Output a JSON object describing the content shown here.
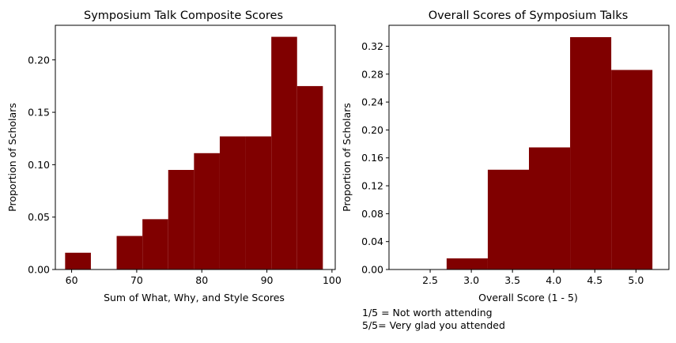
{
  "chart_data": [
    {
      "type": "bar",
      "title": "Symposium Talk Composite Scores",
      "xlabel": "Sum of What, Why, and Style Scores",
      "ylabel": "Proportion of Scholars",
      "xlim": [
        57.5,
        100.5
      ],
      "ylim": [
        0,
        0.233
      ],
      "xticks": [
        60,
        70,
        80,
        90,
        100
      ],
      "xtick_labels": [
        "60",
        "70",
        "80",
        "90",
        "100"
      ],
      "yticks": [
        0,
        0.05,
        0.1,
        0.15,
        0.2
      ],
      "ytick_labels": [
        "0.00",
        "0.05",
        "0.10",
        "0.15",
        "0.20"
      ],
      "bar_color": "#800000",
      "bins": [
        {
          "x0": 59.0,
          "x1": 62.96,
          "value": 0.016
        },
        {
          "x0": 62.96,
          "x1": 66.92,
          "value": 0.0
        },
        {
          "x0": 66.92,
          "x1": 70.88,
          "value": 0.032
        },
        {
          "x0": 70.88,
          "x1": 74.84,
          "value": 0.048
        },
        {
          "x0": 74.84,
          "x1": 78.8,
          "value": 0.095
        },
        {
          "x0": 78.8,
          "x1": 82.76,
          "value": 0.111
        },
        {
          "x0": 82.76,
          "x1": 86.72,
          "value": 0.127
        },
        {
          "x0": 86.72,
          "x1": 90.68,
          "value": 0.127
        },
        {
          "x0": 90.68,
          "x1": 94.64,
          "value": 0.222
        },
        {
          "x0": 94.64,
          "x1": 98.6,
          "value": 0.175
        }
      ]
    },
    {
      "type": "bar",
      "title": "Overall Scores of Symposium Talks",
      "xlabel": "Overall Score (1 - 5)",
      "ylabel": "Proportion of Scholars",
      "xlim": [
        2.0,
        5.4
      ],
      "ylim": [
        0,
        0.35
      ],
      "xticks": [
        2.5,
        3.0,
        3.5,
        4.0,
        4.5,
        5.0
      ],
      "xtick_labels": [
        "2.5",
        "3.0",
        "3.5",
        "4.0",
        "4.5",
        "5.0"
      ],
      "yticks": [
        0,
        0.04,
        0.08,
        0.12,
        0.16,
        0.2,
        0.24,
        0.28,
        0.32
      ],
      "ytick_labels": [
        "0.00",
        "0.04",
        "0.08",
        "0.12",
        "0.16",
        "0.20",
        "0.24",
        "0.28",
        "0.32"
      ],
      "bar_color": "#800000",
      "bins": [
        {
          "x0": 2.2,
          "x1": 2.7,
          "value": 0.0
        },
        {
          "x0": 2.7,
          "x1": 3.2,
          "value": 0.016
        },
        {
          "x0": 3.2,
          "x1": 3.7,
          "value": 0.143
        },
        {
          "x0": 3.7,
          "x1": 4.2,
          "value": 0.175
        },
        {
          "x0": 4.2,
          "x1": 4.7,
          "value": 0.333
        },
        {
          "x0": 4.7,
          "x1": 5.2,
          "value": 0.286
        }
      ],
      "notes": [
        "1/5 = Not worth attending",
        "5/5= Very glad you attended"
      ]
    }
  ]
}
